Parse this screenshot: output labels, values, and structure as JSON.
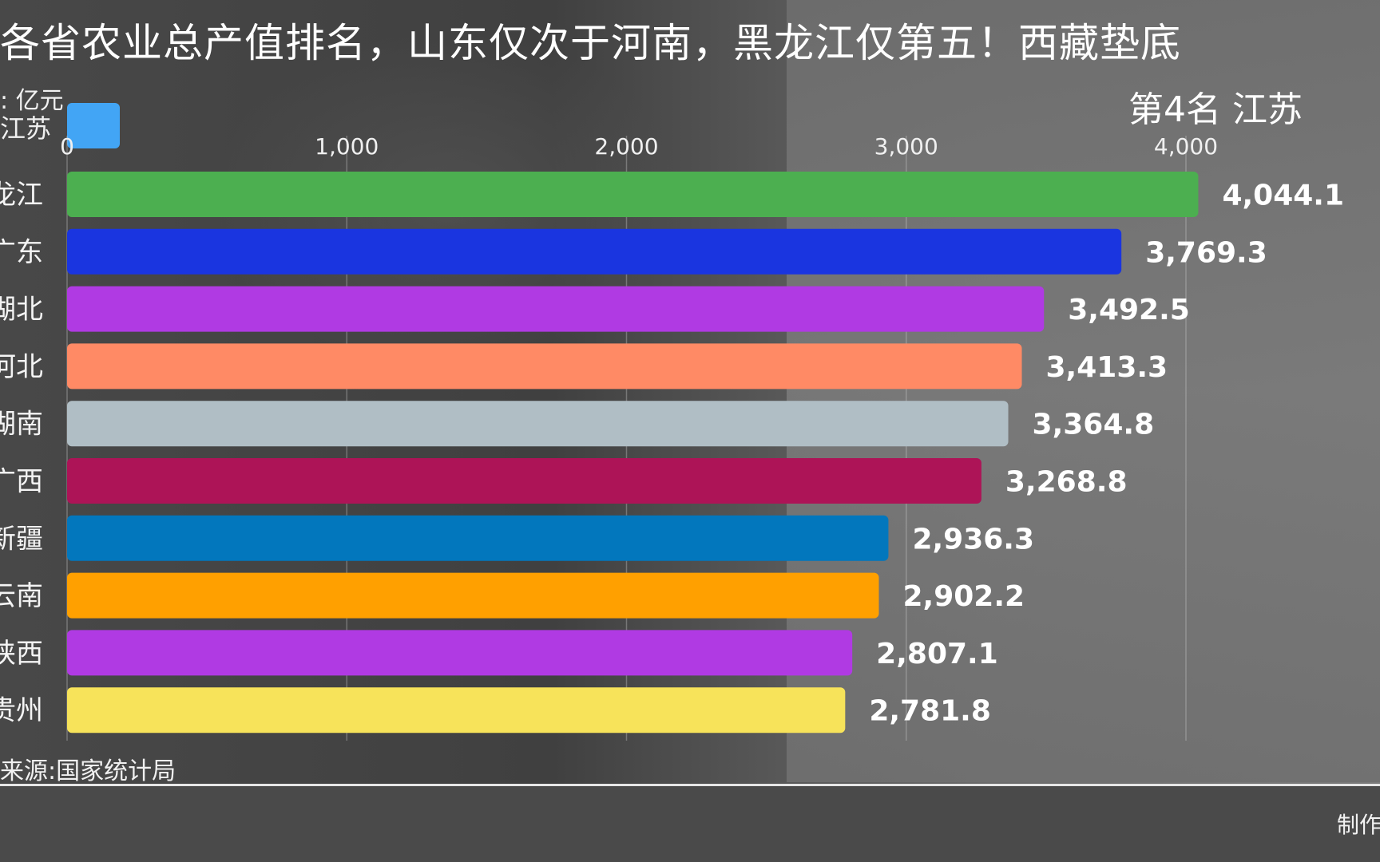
{
  "title": "各省农业总产值排名，山东仅次于河南，黑龙江仅第五！西藏垫底",
  "unit_label": ": 亿元",
  "partial_label": "江苏",
  "rank_label": "第4名 江苏",
  "source_label": "来源:国家统计局",
  "credit_label": "制作",
  "legend": {
    "color": "#42a5f5"
  },
  "chart_data": {
    "type": "bar",
    "orientation": "horizontal",
    "categories": [
      "龙江",
      "广东",
      "湖北",
      "河北",
      "湖南",
      "广西",
      "新疆",
      "云南",
      "陕西",
      "贵州"
    ],
    "values": [
      4044.1,
      3769.3,
      3492.5,
      3413.3,
      3364.8,
      3268.8,
      2936.3,
      2902.2,
      2807.1,
      2781.8
    ],
    "value_labels": [
      "4,044.1",
      "3,769.3",
      "3,492.5",
      "3,413.3",
      "3,364.8",
      "3,268.8",
      "2,936.3",
      "2,902.2",
      "2,807.1",
      "2,781.8"
    ],
    "colors": [
      "#4caf50",
      "#1a35e0",
      "#b03ae3",
      "#ff8a65",
      "#b0bec5",
      "#ad1457",
      "#0277bd",
      "#ffa000",
      "#b03ae3",
      "#f7e35a"
    ],
    "ticks": [
      0,
      1000,
      2000,
      3000,
      4000
    ],
    "tick_labels": [
      "0",
      "1,000",
      "2,000",
      "3,000",
      "4,000"
    ],
    "xlim": [
      0,
      4000
    ],
    "grid": true
  }
}
